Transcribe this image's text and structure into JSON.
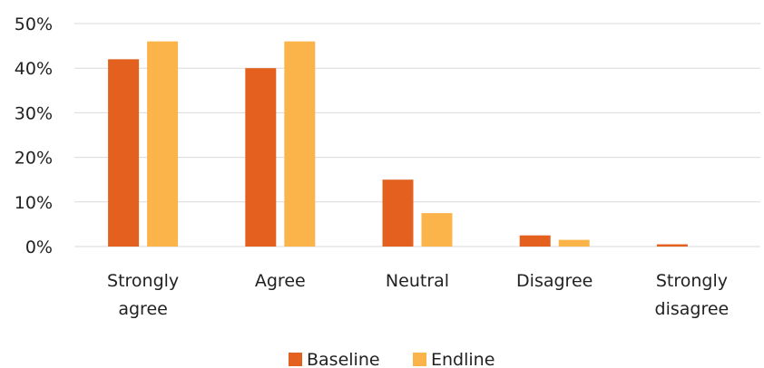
{
  "chart_data": {
    "type": "bar",
    "title": "",
    "xlabel": "",
    "ylabel": "",
    "categories": [
      [
        "Strongly",
        "agree"
      ],
      [
        "Agree"
      ],
      [
        "Neutral"
      ],
      [
        "Disagree"
      ],
      [
        "Strongly",
        "disagree"
      ]
    ],
    "series": [
      {
        "name": "Baseline",
        "color": "#e3601f",
        "values": [
          42,
          40,
          15,
          2.5,
          0.5
        ]
      },
      {
        "name": "Endline",
        "color": "#fbb44a",
        "values": [
          46,
          46,
          7.5,
          1.5,
          0
        ]
      }
    ],
    "ylim": [
      0,
      50
    ],
    "yticks": [
      0,
      10,
      20,
      30,
      40,
      50
    ],
    "ytick_format": "percent",
    "grid": true,
    "legend_position": "bottom"
  }
}
